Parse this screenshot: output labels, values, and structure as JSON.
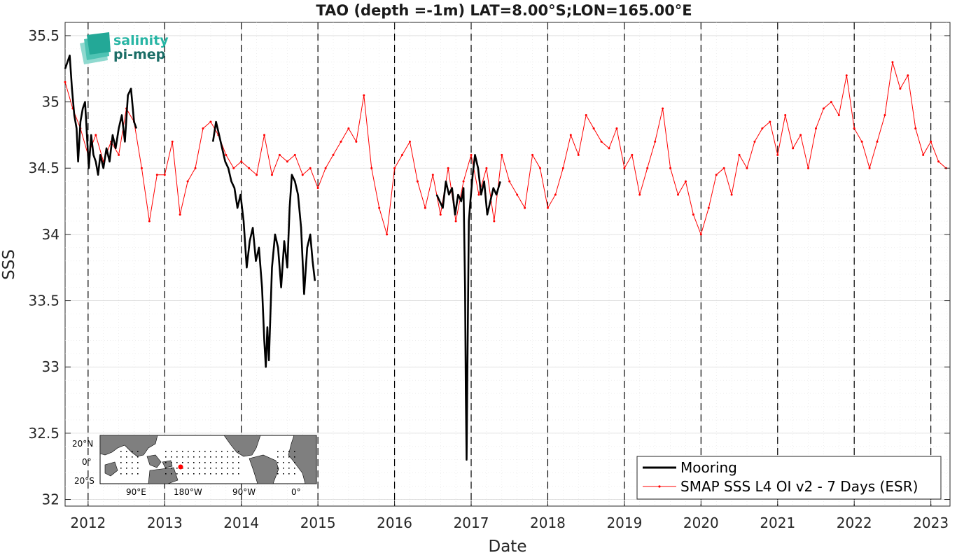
{
  "chart_data": {
    "type": "line",
    "title": "TAO (depth =-1m) LAT=8.00°S;LON=165.00°E",
    "xlabel": "Date",
    "ylabel": "SSS",
    "xlim": [
      2011.7,
      2023.25
    ],
    "ylim": [
      31.95,
      35.6
    ],
    "x_ticks": [
      "2012",
      "2013",
      "2014",
      "2015",
      "2016",
      "2017",
      "2018",
      "2019",
      "2020",
      "2021",
      "2022",
      "2023"
    ],
    "y_ticks": [
      "32",
      "32.5",
      "33",
      "33.5",
      "34",
      "34.5",
      "35",
      "35.5"
    ],
    "grid": true,
    "minor_grid": true,
    "vertical_dashed_lines_at": [
      2012,
      2013,
      2014,
      2015,
      2016,
      2017,
      2018,
      2019,
      2020,
      2021,
      2022,
      2023
    ],
    "legend_position": "bottom-right",
    "series": [
      {
        "name": "Mooring",
        "color": "#000000",
        "style": "thick-line",
        "segments": [
          [
            [
              2011.7,
              35.25
            ],
            [
              2011.73,
              35.3
            ],
            [
              2011.76,
              35.35
            ],
            [
              2011.79,
              35.1
            ],
            [
              2011.82,
              34.9
            ],
            [
              2011.85,
              34.8
            ],
            [
              2011.87,
              34.55
            ],
            [
              2011.9,
              34.85
            ],
            [
              2011.93,
              34.95
            ],
            [
              2011.96,
              35.0
            ],
            [
              2011.99,
              34.7
            ],
            [
              2012.01,
              34.5
            ],
            [
              2012.04,
              34.75
            ],
            [
              2012.07,
              34.6
            ],
            [
              2012.1,
              34.55
            ],
            [
              2012.13,
              34.45
            ],
            [
              2012.16,
              34.6
            ],
            [
              2012.2,
              34.5
            ],
            [
              2012.24,
              34.65
            ],
            [
              2012.28,
              34.55
            ],
            [
              2012.32,
              34.75
            ],
            [
              2012.36,
              34.65
            ],
            [
              2012.4,
              34.8
            ],
            [
              2012.44,
              34.9
            ],
            [
              2012.48,
              34.7
            ],
            [
              2012.52,
              35.05
            ],
            [
              2012.56,
              35.1
            ],
            [
              2012.6,
              34.85
            ],
            [
              2012.63,
              34.8
            ]
          ],
          [
            [
              2013.63,
              34.7
            ],
            [
              2013.67,
              34.85
            ],
            [
              2013.71,
              34.75
            ],
            [
              2013.75,
              34.65
            ],
            [
              2013.79,
              34.55
            ],
            [
              2013.83,
              34.5
            ],
            [
              2013.87,
              34.4
            ],
            [
              2013.91,
              34.35
            ],
            [
              2013.95,
              34.2
            ],
            [
              2013.99,
              34.3
            ],
            [
              2014.03,
              34.1
            ],
            [
              2014.07,
              33.75
            ],
            [
              2014.11,
              33.95
            ],
            [
              2014.15,
              34.05
            ],
            [
              2014.19,
              33.8
            ],
            [
              2014.23,
              33.9
            ],
            [
              2014.27,
              33.6
            ],
            [
              2014.3,
              33.2
            ],
            [
              2014.32,
              33.0
            ],
            [
              2014.34,
              33.3
            ],
            [
              2014.36,
              33.05
            ],
            [
              2014.4,
              33.75
            ],
            [
              2014.44,
              34.0
            ],
            [
              2014.48,
              33.9
            ],
            [
              2014.52,
              33.6
            ],
            [
              2014.56,
              33.95
            ],
            [
              2014.6,
              33.75
            ],
            [
              2014.63,
              34.2
            ],
            [
              2014.66,
              34.45
            ],
            [
              2014.7,
              34.4
            ],
            [
              2014.74,
              34.3
            ],
            [
              2014.78,
              34.05
            ],
            [
              2014.82,
              33.55
            ],
            [
              2014.86,
              33.9
            ],
            [
              2014.9,
              34.0
            ],
            [
              2014.93,
              33.8
            ],
            [
              2014.96,
              33.65
            ]
          ],
          [
            [
              2016.55,
              34.3
            ],
            [
              2016.59,
              34.25
            ],
            [
              2016.63,
              34.2
            ],
            [
              2016.67,
              34.4
            ],
            [
              2016.71,
              34.3
            ],
            [
              2016.75,
              34.35
            ],
            [
              2016.79,
              34.15
            ],
            [
              2016.83,
              34.3
            ],
            [
              2016.87,
              34.25
            ],
            [
              2016.9,
              34.35
            ],
            [
              2016.92,
              33.6
            ],
            [
              2016.93,
              32.8
            ],
            [
              2016.94,
              32.3
            ],
            [
              2016.95,
              32.9
            ],
            [
              2016.97,
              34.1
            ],
            [
              2016.99,
              34.25
            ],
            [
              2017.02,
              34.45
            ],
            [
              2017.05,
              34.6
            ],
            [
              2017.09,
              34.5
            ],
            [
              2017.13,
              34.3
            ],
            [
              2017.17,
              34.4
            ],
            [
              2017.21,
              34.15
            ],
            [
              2017.25,
              34.25
            ],
            [
              2017.29,
              34.35
            ],
            [
              2017.33,
              34.3
            ],
            [
              2017.38,
              34.4
            ]
          ]
        ]
      },
      {
        "name": "SMAP SSS L4 OI v2 - 7 Days (ESR)",
        "color": "#ff0000",
        "style": "thin-line-dots",
        "x": [
          2011.7,
          2011.8,
          2011.9,
          2012.0,
          2012.1,
          2012.2,
          2012.3,
          2012.4,
          2012.5,
          2012.6,
          2012.7,
          2012.8,
          2012.9,
          2013.0,
          2013.1,
          2013.2,
          2013.3,
          2013.4,
          2013.5,
          2013.6,
          2013.7,
          2013.8,
          2013.9,
          2014.0,
          2014.1,
          2014.2,
          2014.3,
          2014.4,
          2014.5,
          2014.6,
          2014.7,
          2014.8,
          2014.9,
          2015.0,
          2015.1,
          2015.2,
          2015.3,
          2015.4,
          2015.5,
          2015.6,
          2015.7,
          2015.8,
          2015.9,
          2016.0,
          2016.1,
          2016.2,
          2016.3,
          2016.4,
          2016.5,
          2016.6,
          2016.7,
          2016.8,
          2016.9,
          2017.0,
          2017.1,
          2017.2,
          2017.3,
          2017.4,
          2017.5,
          2017.6,
          2017.7,
          2017.8,
          2017.9,
          2018.0,
          2018.1,
          2018.2,
          2018.3,
          2018.4,
          2018.5,
          2018.6,
          2018.7,
          2018.8,
          2018.9,
          2019.0,
          2019.1,
          2019.2,
          2019.3,
          2019.4,
          2019.5,
          2019.6,
          2019.7,
          2019.8,
          2019.9,
          2020.0,
          2020.1,
          2020.2,
          2020.3,
          2020.4,
          2020.5,
          2020.6,
          2020.7,
          2020.8,
          2020.9,
          2021.0,
          2021.1,
          2021.2,
          2021.3,
          2021.4,
          2021.5,
          2021.6,
          2021.7,
          2021.8,
          2021.9,
          2022.0,
          2022.1,
          2022.2,
          2022.3,
          2022.4,
          2022.5,
          2022.6,
          2022.7,
          2022.8,
          2022.9,
          2023.0,
          2023.1,
          2023.2
        ],
        "y": [
          35.15,
          34.95,
          34.8,
          34.6,
          34.75,
          34.55,
          34.7,
          34.6,
          34.95,
          34.85,
          34.5,
          34.1,
          34.45,
          34.45,
          34.7,
          34.15,
          34.4,
          34.5,
          34.8,
          34.85,
          34.75,
          34.6,
          34.5,
          34.55,
          34.5,
          34.45,
          34.75,
          34.45,
          34.6,
          34.55,
          34.6,
          34.45,
          34.5,
          34.35,
          34.5,
          34.6,
          34.7,
          34.8,
          34.7,
          35.05,
          34.5,
          34.2,
          34.0,
          34.5,
          34.6,
          34.7,
          34.4,
          34.2,
          34.45,
          34.15,
          34.5,
          34.1,
          34.4,
          34.6,
          34.3,
          34.5,
          34.1,
          34.6,
          34.4,
          34.3,
          34.2,
          34.6,
          34.5,
          34.2,
          34.3,
          34.5,
          34.75,
          34.6,
          34.9,
          34.8,
          34.7,
          34.65,
          34.8,
          34.5,
          34.6,
          34.3,
          34.5,
          34.7,
          34.95,
          34.5,
          34.3,
          34.4,
          34.15,
          34.0,
          34.2,
          34.45,
          34.5,
          34.3,
          34.6,
          34.5,
          34.7,
          34.8,
          34.85,
          34.6,
          34.9,
          34.65,
          34.75,
          34.5,
          34.8,
          34.95,
          35.0,
          34.9,
          35.2,
          34.8,
          34.7,
          34.5,
          34.7,
          34.9,
          35.3,
          35.1,
          35.2,
          34.8,
          34.6,
          34.7,
          34.55,
          34.5
        ]
      }
    ]
  },
  "logo": {
    "line1": "salinity",
    "line2": "pi-mep"
  },
  "inset_map": {
    "lat_labels": [
      "20°N",
      "0°",
      "20°S"
    ],
    "lon_labels": [
      "90°E",
      "180°W",
      "90°W",
      "0°"
    ],
    "marker_color": "#ff0000"
  }
}
